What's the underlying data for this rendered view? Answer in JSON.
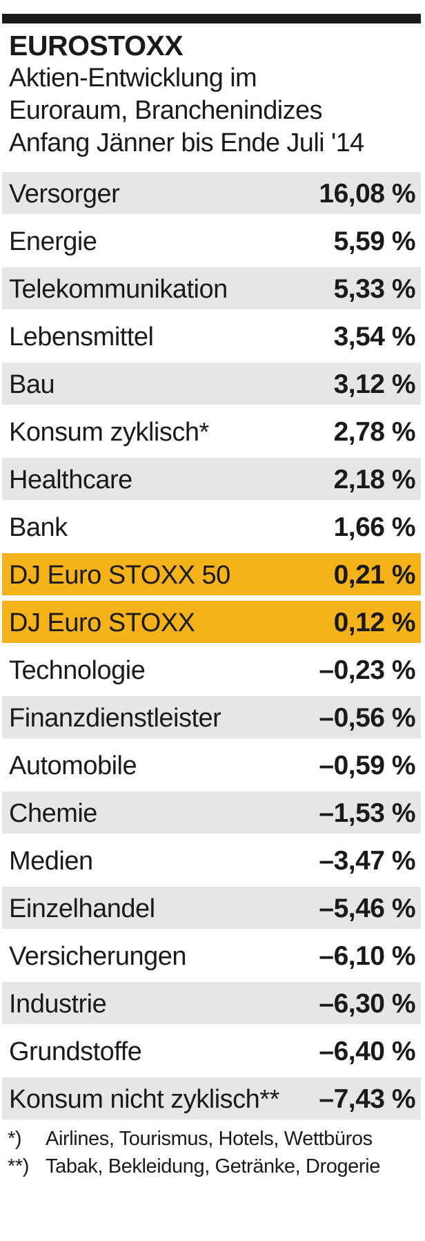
{
  "header": {
    "title": "EUROSTOXX",
    "subtitle_lines": [
      "Aktien-Entwicklung im",
      "Euroraum, Branchenindizes",
      "Anfang Jänner bis Ende Juli '14"
    ]
  },
  "chart_data": {
    "type": "table",
    "title": "EUROSTOXX",
    "subtitle": "Aktien-Entwicklung im Euroraum, Branchenindizes Anfang Jänner bis Ende Juli '14",
    "unit": "%",
    "rows": [
      {
        "label": "Versorger",
        "value": 16.08,
        "display": "16,08 %",
        "style": "shade"
      },
      {
        "label": "Energie",
        "value": 5.59,
        "display": "5,59 %",
        "style": "white"
      },
      {
        "label": "Telekommunikation",
        "value": 5.33,
        "display": "5,33 %",
        "style": "shade"
      },
      {
        "label": "Lebensmittel",
        "value": 3.54,
        "display": "3,54 %",
        "style": "white"
      },
      {
        "label": "Bau",
        "value": 3.12,
        "display": "3,12 %",
        "style": "shade"
      },
      {
        "label": "Konsum zyklisch*",
        "value": 2.78,
        "display": "2,78 %",
        "style": "white"
      },
      {
        "label": "Healthcare",
        "value": 2.18,
        "display": "2,18 %",
        "style": "shade"
      },
      {
        "label": "Bank",
        "value": 1.66,
        "display": "1,66 %",
        "style": "white"
      },
      {
        "label": "DJ Euro STOXX 50",
        "value": 0.21,
        "display": "0,21 %",
        "style": "highlight"
      },
      {
        "label": "DJ Euro STOXX",
        "value": 0.12,
        "display": "0,12 %",
        "style": "highlight"
      },
      {
        "label": "Technologie",
        "value": -0.23,
        "display": "–0,23 %",
        "style": "white"
      },
      {
        "label": "Finanzdienstleister",
        "value": -0.56,
        "display": "–0,56 %",
        "style": "shade"
      },
      {
        "label": "Automobile",
        "value": -0.59,
        "display": "–0,59 %",
        "style": "white"
      },
      {
        "label": "Chemie",
        "value": -1.53,
        "display": "–1,53 %",
        "style": "shade"
      },
      {
        "label": "Medien",
        "value": -3.47,
        "display": "–3,47 %",
        "style": "white"
      },
      {
        "label": "Einzelhandel",
        "value": -5.46,
        "display": "–5,46 %",
        "style": "shade"
      },
      {
        "label": "Versicherungen",
        "value": -6.1,
        "display": "–6,10 %",
        "style": "white"
      },
      {
        "label": "Industrie",
        "value": -6.3,
        "display": "–6,30 %",
        "style": "shade"
      },
      {
        "label": "Grundstoffe",
        "value": -6.4,
        "display": "–6,40 %",
        "style": "white"
      },
      {
        "label": "Konsum nicht zyklisch**",
        "value": -7.43,
        "display": "–7,43 %",
        "style": "shade"
      }
    ],
    "colors": {
      "shade": "#e6e6e6",
      "highlight": "#f5b21b",
      "rule": "#1a1a1a"
    }
  },
  "footnotes": [
    {
      "mark": "*)",
      "text": "Airlines, Tourismus, Hotels, Wettbüros"
    },
    {
      "mark": "**)",
      "text": "Tabak, Bekleidung, Getränke, Drogerie"
    }
  ]
}
